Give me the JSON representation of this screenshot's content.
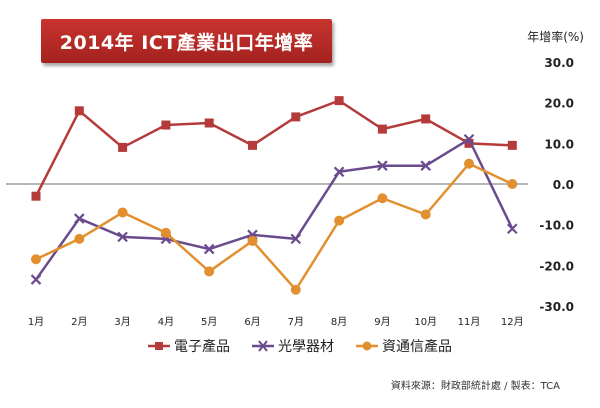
{
  "title": "2014年 ICT產業出口年增率",
  "y_unit": "年增率(%)",
  "source": "資料來源：財政部統計處 / 製表：TCA",
  "colors": {
    "電子產品": "#b53a3a",
    "光學器材": "#6a4b8e",
    "資通信產品": "#e2902f",
    "banner": "#b82a27",
    "zero_line": "#8c8c8c"
  },
  "chart_data": {
    "type": "line",
    "categories": [
      "1月",
      "2月",
      "3月",
      "4月",
      "5月",
      "6月",
      "7月",
      "8月",
      "9月",
      "10月",
      "11月",
      "12月"
    ],
    "series": [
      {
        "name": "電子產品",
        "marker": "square",
        "values": [
          -3,
          18,
          9,
          14.5,
          15,
          9.5,
          16.5,
          20.5,
          13.5,
          16,
          10,
          9.5
        ]
      },
      {
        "name": "光學器材",
        "marker": "x",
        "values": [
          -23.5,
          -8.5,
          -13,
          -13.5,
          -16,
          -12.5,
          -13.5,
          3,
          4.5,
          4.5,
          11,
          -11
        ]
      },
      {
        "name": "資通信產品",
        "marker": "circle",
        "values": [
          -18.5,
          -13.5,
          -7,
          -12,
          -21.5,
          -14,
          -26,
          -9,
          -3.5,
          -7.5,
          5,
          0
        ]
      }
    ],
    "ylim": [
      -30,
      30
    ],
    "yticks": [
      "30.0",
      "20.0",
      "10.0",
      "0.0",
      "-10.0",
      "-20.0",
      "-30.0"
    ],
    "y_axis_side": "right",
    "legend_position": "bottom",
    "grid": false
  }
}
